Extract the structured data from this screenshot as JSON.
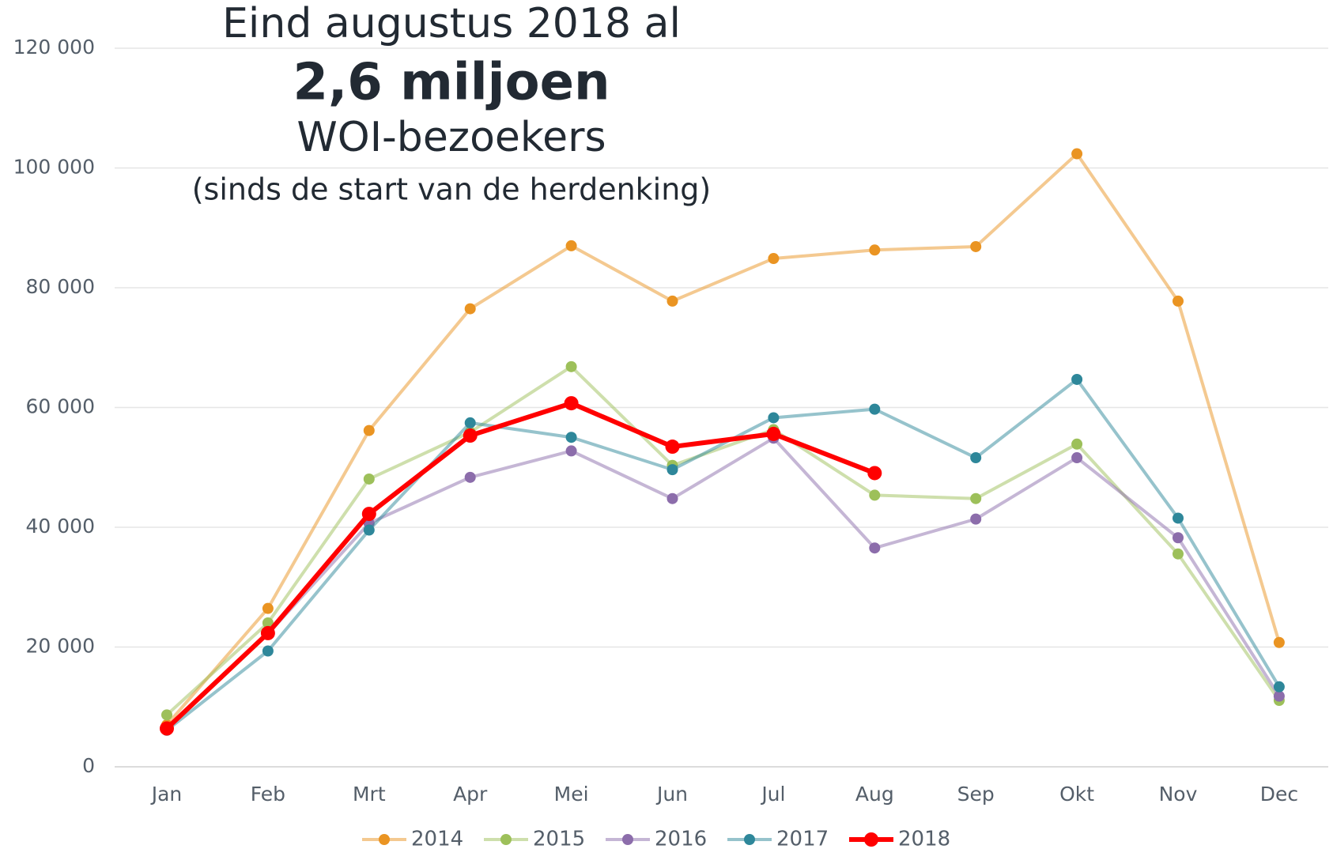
{
  "chart_data": {
    "type": "line",
    "title": "Eind augustus 2018 al",
    "subtitle": [
      "2,6 miljoen",
      "WOI-bezoekers",
      "(sinds de start van de herdenking)"
    ],
    "categories": [
      "Jan",
      "Feb",
      "Mrt",
      "Apr",
      "Mei",
      "Jun",
      "Jul",
      "Aug",
      "Sep",
      "Okt",
      "Nov",
      "Dec"
    ],
    "series": [
      {
        "name": "2014",
        "color": "#ea9422",
        "values": [
          7000,
          26450,
          56160,
          76490,
          87010,
          77770,
          84880,
          86300,
          86870,
          102370,
          77770,
          20760
        ]
      },
      {
        "name": "2015",
        "color": "#9dc05a",
        "values": [
          8670,
          24030,
          48060,
          55880,
          66820,
          50330,
          56300,
          45360,
          44790,
          53890,
          35550,
          11090
        ]
      },
      {
        "name": "2016",
        "color": "#8c6dab",
        "values": [
          6500,
          22200,
          40660,
          48340,
          52750,
          44790,
          54880,
          36540,
          41370,
          51610,
          38250,
          11800
        ]
      },
      {
        "name": "2017",
        "color": "#2e879a",
        "values": [
          6100,
          19340,
          39530,
          57440,
          55020,
          49620,
          58290,
          59720,
          51610,
          64690,
          41520,
          13360
        ]
      },
      {
        "name": "2018",
        "color": "#ff0000",
        "values": [
          6400,
          22320,
          42230,
          55310,
          60710,
          53460,
          55590,
          49050,
          null,
          null,
          null,
          null
        ]
      }
    ],
    "ylim": [
      0,
      120000
    ],
    "yticks": [
      0,
      {
        "value": 20000,
        "label": "20 000"
      },
      {
        "value": 40000,
        "label": "40 000"
      },
      {
        "value": 60000,
        "label": "60 000"
      },
      {
        "value": 80000,
        "label": "80 000"
      },
      {
        "value": 100000,
        "label": "100 000"
      },
      {
        "value": 120000,
        "label": "120 000"
      }
    ],
    "grid": true,
    "legend": "bottom"
  }
}
